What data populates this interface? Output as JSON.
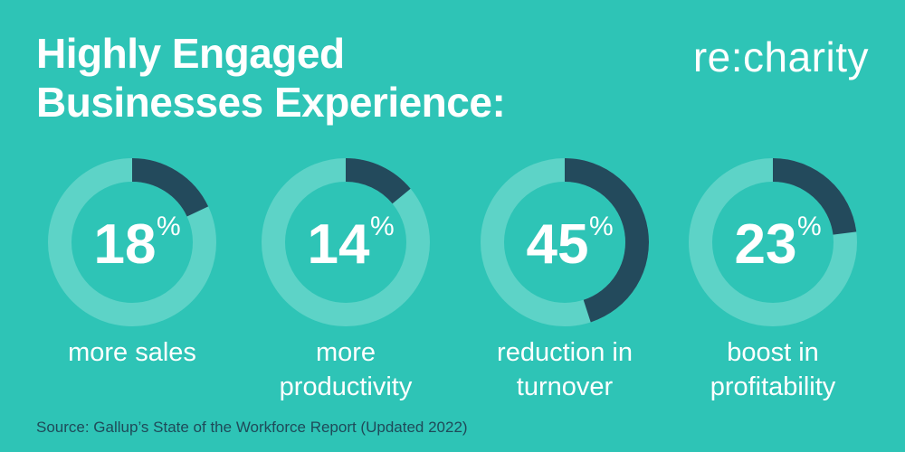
{
  "title_line1": "Highly Engaged",
  "title_line2": "Businesses Experience:",
  "brand": "re:charity",
  "source": "Source: Gallup’s State of the Workforce Report (Updated 2022)",
  "colors": {
    "background": "#2ec4b6",
    "ring_track": "#5dd3c7",
    "ring_fill": "#234a5c",
    "text": "#ffffff",
    "source_text": "#1f4a59"
  },
  "chart_data": {
    "type": "pie",
    "series": [
      {
        "value": 18,
        "value_label": "18",
        "unit": "%",
        "label_lines": [
          "more sales"
        ]
      },
      {
        "value": 14,
        "value_label": "14",
        "unit": "%",
        "label_lines": [
          "more",
          "productivity"
        ]
      },
      {
        "value": 45,
        "value_label": "45",
        "unit": "%",
        "label_lines": [
          "reduction in",
          "turnover"
        ]
      },
      {
        "value": 23,
        "value_label": "23",
        "unit": "%",
        "label_lines": [
          "boost in",
          "profitability"
        ]
      }
    ]
  }
}
